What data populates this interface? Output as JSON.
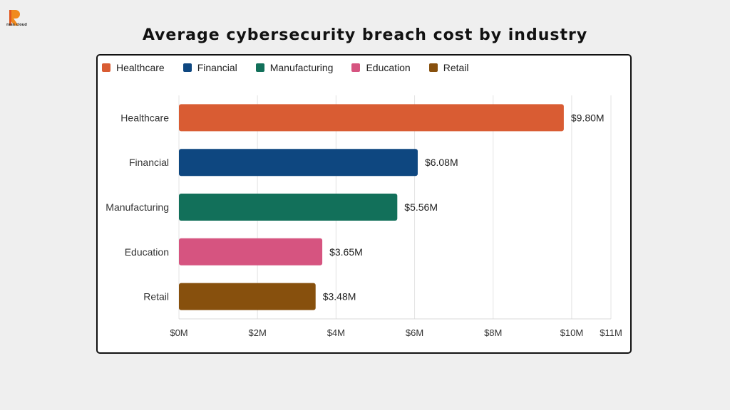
{
  "header": {
    "logo_text": "rass cloud",
    "title": "Average cybersecurity breach cost by industry"
  },
  "chart_data": {
    "type": "bar",
    "orientation": "horizontal",
    "title": "Average cybersecurity breach cost by industry",
    "categories": [
      "Healthcare",
      "Financial",
      "Manufacturing",
      "Education",
      "Retail"
    ],
    "values": [
      9.8,
      6.08,
      5.56,
      3.65,
      3.48
    ],
    "data_labels": [
      "$9.80M",
      "$6.08M",
      "$5.56M",
      "$3.65M",
      "$3.48M"
    ],
    "colors": [
      "#d95c33",
      "#0e4780",
      "#12705a",
      "#d65480",
      "#87500d"
    ],
    "xticks": [
      0,
      2,
      4,
      6,
      8,
      10,
      11
    ],
    "xtick_labels": [
      "$0M",
      "$2M",
      "$4M",
      "$6M",
      "$8M",
      "$10M",
      "$11M"
    ],
    "xlim": [
      0,
      11
    ],
    "grid": true,
    "legend_position": "top-left",
    "legend": [
      "Healthcare",
      "Financial",
      "Manufacturing",
      "Education",
      "Retail"
    ]
  }
}
